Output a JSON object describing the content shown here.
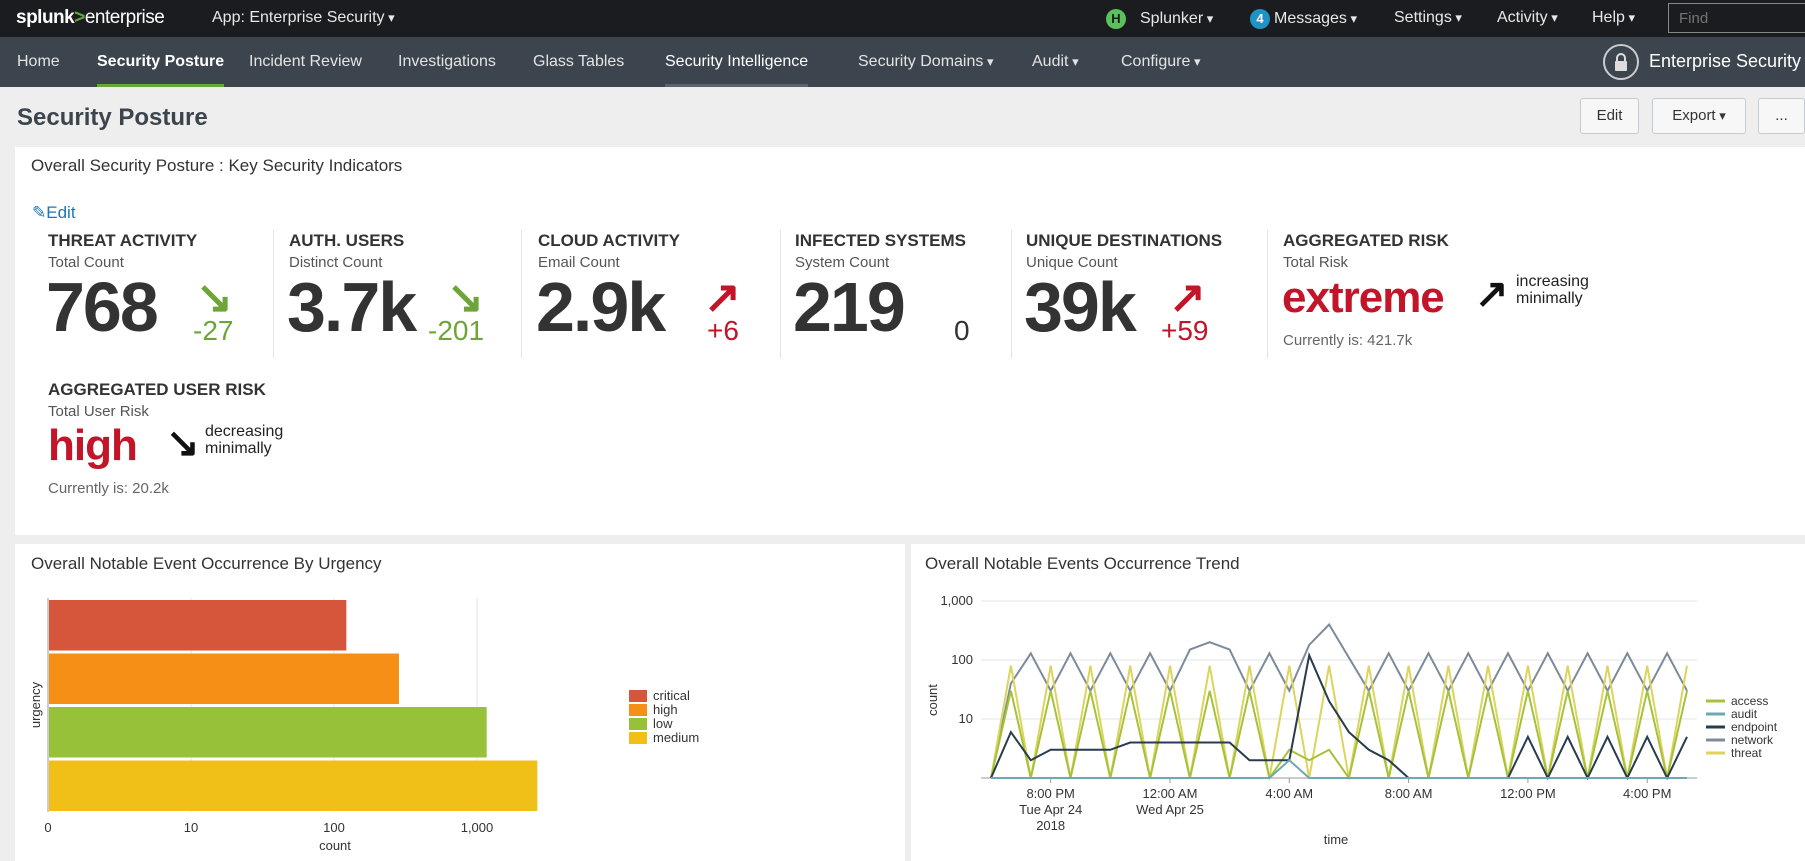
{
  "topbar": {
    "logo_main": "splunk",
    "logo_gt": ">",
    "logo_product": "enterprise",
    "app_label": "App: Enterprise Security",
    "user_badge": "H",
    "user_name": "Splunker",
    "messages_count": "4",
    "messages_label": "Messages",
    "settings_label": "Settings",
    "activity_label": "Activity",
    "help_label": "Help",
    "find_placeholder": "Find"
  },
  "nav": {
    "items": [
      "Home",
      "Security Posture",
      "Incident Review",
      "Investigations",
      "Glass Tables",
      "Security Intelligence",
      "Security Domains",
      "Audit",
      "Configure"
    ],
    "active": "Security Posture",
    "brand": "Enterprise Security"
  },
  "page": {
    "title": "Security Posture",
    "edit_btn": "Edit",
    "export_btn": "Export",
    "more_btn": "..."
  },
  "kpi_panel": {
    "title": "Overall Security Posture : Key Security Indicators",
    "edit_link": "Edit",
    "kpis": [
      {
        "title": "THREAT ACTIVITY",
        "sub": "Total Count",
        "value": "768",
        "delta": "-27",
        "direction": "down-good"
      },
      {
        "title": "AUTH. USERS",
        "sub": "Distinct Count",
        "value": "3.7k",
        "delta": "-201",
        "direction": "down-good"
      },
      {
        "title": "CLOUD ACTIVITY",
        "sub": "Email Count",
        "value": "2.9k",
        "delta": "+6",
        "direction": "up-bad"
      },
      {
        "title": "INFECTED SYSTEMS",
        "sub": "System Count",
        "value": "219",
        "delta": "0",
        "direction": "none"
      },
      {
        "title": "UNIQUE DESTINATIONS",
        "sub": "Unique Count",
        "value": "39k",
        "delta": "+59",
        "direction": "up-bad"
      }
    ],
    "aggregated_risk": {
      "title": "AGGREGATED RISK",
      "sub": "Total Risk",
      "level": "extreme",
      "trend1": "increasing",
      "trend2": "minimally",
      "current": "Currently is: 421.7k"
    },
    "aggregated_user_risk": {
      "title": "AGGREGATED USER RISK",
      "sub": "Total User Risk",
      "level": "high",
      "trend1": "decreasing",
      "trend2": "minimally",
      "current": "Currently is: 20.2k"
    }
  },
  "urgency_panel": {
    "title": "Overall Notable Event Occurrence By Urgency"
  },
  "trend_panel": {
    "title": "Overall Notable Events Occurrence Trend"
  },
  "colors": {
    "critical": "#d6563c",
    "high": "#f58f16",
    "low": "#97c139",
    "medium": "#f0c019",
    "access": "#a6c13a",
    "audit": "#6ea8b5",
    "endpoint": "#283c4f",
    "network": "#7c8b9a",
    "threat": "#dcd45d"
  },
  "chart_data": [
    {
      "type": "bar",
      "orientation": "horizontal",
      "title": "Overall Notable Event Occurrence By Urgency",
      "categories": [
        "critical",
        "high",
        "low",
        "medium"
      ],
      "values": [
        120,
        280,
        1150,
        2600
      ],
      "xlabel": "count",
      "ylabel": "urgency",
      "xscale": "log",
      "xticks": [
        "0",
        "10",
        "100",
        "1,000"
      ],
      "legend": [
        "critical",
        "high",
        "low",
        "medium"
      ],
      "legend_position": "right",
      "grid": true
    },
    {
      "type": "line",
      "title": "Overall Notable Events Occurrence Trend",
      "xlabel": "time",
      "ylabel": "count",
      "yscale": "log",
      "yticks": [
        "10",
        "100",
        "1,000"
      ],
      "xticks": [
        "8:00 PM\nTue Apr 24\n2018",
        "12:00 AM\nWed Apr 25",
        "4:00 AM",
        "8:00 AM",
        "12:00 PM",
        "4:00 PM"
      ],
      "legend": [
        "access",
        "audit",
        "endpoint",
        "network",
        "threat"
      ],
      "legend_position": "right",
      "x": [
        "6:00 PM",
        "6:40 PM",
        "7:20 PM",
        "8:00 PM",
        "8:40 PM",
        "9:20 PM",
        "10:00 PM",
        "10:40 PM",
        "11:20 PM",
        "12:00 AM",
        "12:40 AM",
        "1:20 AM",
        "2:00 AM",
        "2:40 AM",
        "3:20 AM",
        "4:00 AM",
        "4:40 AM",
        "5:20 AM",
        "6:00 AM",
        "6:40 AM",
        "7:20 AM",
        "8:00 AM",
        "8:40 AM",
        "9:20 AM",
        "10:00 AM",
        "10:40 AM",
        "11:20 AM",
        "12:00 PM",
        "12:40 PM",
        "1:20 PM",
        "2:00 PM",
        "2:40 PM",
        "3:20 PM",
        "4:00 PM",
        "4:40 PM",
        "5:20 PM"
      ],
      "series": [
        {
          "name": "network",
          "values": [
            1,
            40,
            130,
            30,
            130,
            30,
            130,
            30,
            130,
            30,
            150,
            200,
            150,
            30,
            130,
            30,
            180,
            400,
            110,
            30,
            130,
            30,
            130,
            30,
            130,
            30,
            130,
            30,
            130,
            30,
            130,
            30,
            130,
            30,
            130,
            30
          ]
        },
        {
          "name": "threat",
          "values": [
            1,
            80,
            1,
            80,
            1,
            80,
            1,
            80,
            1,
            80,
            1,
            80,
            1,
            80,
            1,
            80,
            1,
            80,
            1,
            80,
            1,
            80,
            1,
            80,
            1,
            80,
            1,
            80,
            1,
            80,
            1,
            80,
            1,
            80,
            1,
            80
          ]
        },
        {
          "name": "access",
          "values": [
            1,
            30,
            1,
            30,
            1,
            30,
            1,
            30,
            1,
            30,
            1,
            30,
            1,
            30,
            1,
            3,
            2,
            3,
            1,
            30,
            1,
            30,
            1,
            30,
            1,
            30,
            1,
            30,
            1,
            30,
            1,
            30,
            1,
            30,
            1,
            30
          ]
        },
        {
          "name": "endpoint",
          "values": [
            1,
            6,
            2,
            3,
            3,
            3,
            3,
            4,
            4,
            4,
            4,
            4,
            4,
            2,
            2,
            2,
            120,
            20,
            6,
            3,
            2,
            1,
            1,
            1,
            1,
            1,
            1,
            5,
            1,
            5,
            1,
            5,
            1,
            5,
            1,
            5
          ]
        },
        {
          "name": "audit",
          "values": [
            1,
            1,
            1,
            1,
            1,
            1,
            1,
            1,
            1,
            1,
            1,
            1,
            1,
            1,
            1,
            2,
            1,
            1,
            1,
            1,
            1,
            1,
            1,
            1,
            1,
            1,
            1,
            1,
            1,
            1,
            1,
            1,
            1,
            1,
            1,
            1
          ]
        }
      ]
    }
  ]
}
